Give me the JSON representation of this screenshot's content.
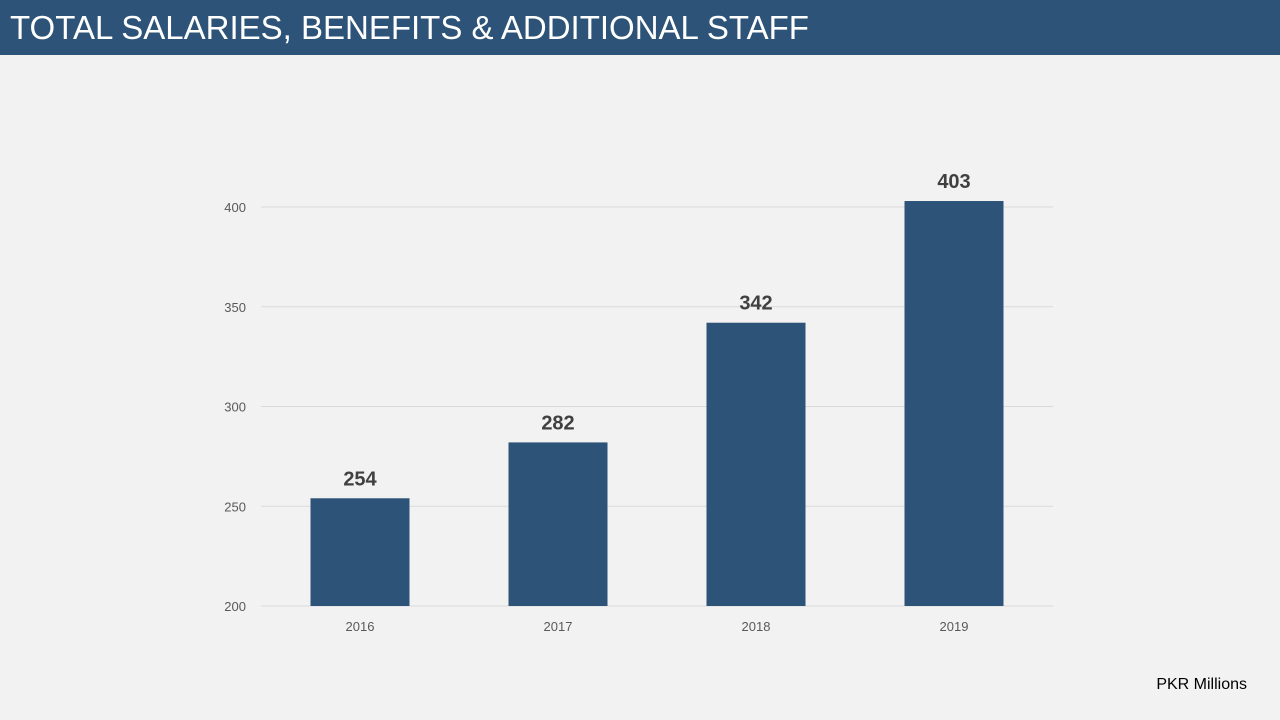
{
  "header": {
    "title": "TOTAL SALARIES, BENEFITS & ADDITIONAL STAFF"
  },
  "unit_note": "PKR Millions",
  "colors": {
    "title_bar": "#2d5478",
    "bar": "#2d5478",
    "background": "#f2f2f2",
    "gridline": "#d9d9d9",
    "tick_text": "#595959",
    "data_label": "#404040"
  },
  "chart_data": {
    "type": "bar",
    "categories": [
      "2016",
      "2017",
      "2018",
      "2019"
    ],
    "values": [
      254,
      282,
      342,
      403
    ],
    "data_labels": [
      "254",
      "282",
      "342",
      "403"
    ],
    "ylim": [
      200,
      400
    ],
    "yticks": [
      200,
      250,
      300,
      350,
      400
    ],
    "ytick_labels": [
      "200",
      "250",
      "300",
      "350",
      "400"
    ],
    "grid": true,
    "legend": "none"
  }
}
